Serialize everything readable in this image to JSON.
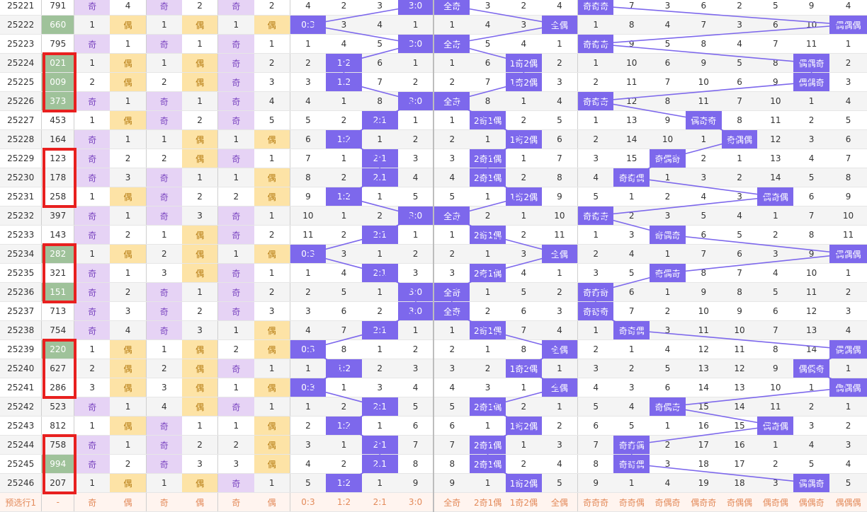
{
  "rows": [
    [
      "25221",
      "791",
      "奇",
      "4",
      "奇",
      "2",
      "奇",
      "2",
      "4",
      "2",
      "3",
      "3:0",
      "全奇",
      "3",
      "2",
      "4",
      "奇奇奇",
      "7",
      "3",
      "6",
      "2",
      "5",
      "9",
      "4"
    ],
    [
      "25222",
      "660",
      "1",
      "偶",
      "1",
      "偶",
      "1",
      "偶",
      "0:3",
      "3",
      "4",
      "1",
      "1",
      "4",
      "3",
      "全偶",
      "1",
      "8",
      "4",
      "7",
      "3",
      "6",
      "10",
      "偶偶偶"
    ],
    [
      "25223",
      "795",
      "奇",
      "1",
      "奇",
      "1",
      "奇",
      "1",
      "1",
      "4",
      "5",
      "3:0",
      "全奇",
      "5",
      "4",
      "1",
      "奇奇奇",
      "9",
      "5",
      "8",
      "4",
      "7",
      "11",
      "1"
    ],
    [
      "25224",
      "021",
      "1",
      "偶",
      "1",
      "偶",
      "奇",
      "2",
      "2",
      "1:2",
      "6",
      "1",
      "1",
      "6",
      "1奇2偶",
      "2",
      "1",
      "10",
      "6",
      "9",
      "5",
      "8",
      "偶偶奇",
      "2"
    ],
    [
      "25225",
      "009",
      "2",
      "偶",
      "2",
      "偶",
      "奇",
      "3",
      "3",
      "1:2",
      "7",
      "2",
      "2",
      "7",
      "1奇2偶",
      "3",
      "2",
      "11",
      "7",
      "10",
      "6",
      "9",
      "偶偶奇",
      "3"
    ],
    [
      "25226",
      "373",
      "奇",
      "1",
      "奇",
      "1",
      "奇",
      "4",
      "4",
      "1",
      "8",
      "3:0",
      "全奇",
      "8",
      "1",
      "4",
      "奇奇奇",
      "12",
      "8",
      "11",
      "7",
      "10",
      "1",
      "4"
    ],
    [
      "25227",
      "453",
      "1",
      "偶",
      "奇",
      "2",
      "奇",
      "5",
      "5",
      "2",
      "2:1",
      "1",
      "1",
      "2奇1偶",
      "2",
      "5",
      "1",
      "13",
      "9",
      "偶奇奇",
      "8",
      "11",
      "2",
      "5"
    ],
    [
      "25228",
      "164",
      "奇",
      "1",
      "1",
      "偶",
      "1",
      "偶",
      "6",
      "1:2",
      "1",
      "2",
      "2",
      "1",
      "1奇2偶",
      "6",
      "2",
      "14",
      "10",
      "1",
      "奇偶偶",
      "12",
      "3",
      "6"
    ],
    [
      "25229",
      "123",
      "奇",
      "2",
      "2",
      "偶",
      "奇",
      "1",
      "7",
      "1",
      "2:1",
      "3",
      "3",
      "2奇1偶",
      "1",
      "7",
      "3",
      "15",
      "奇偶奇",
      "2",
      "1",
      "13",
      "4",
      "7"
    ],
    [
      "25230",
      "178",
      "奇",
      "3",
      "奇",
      "1",
      "1",
      "偶",
      "8",
      "2",
      "2:1",
      "4",
      "4",
      "2奇1偶",
      "2",
      "8",
      "4",
      "奇奇偶",
      "1",
      "3",
      "2",
      "14",
      "5",
      "8"
    ],
    [
      "25231",
      "258",
      "1",
      "偶",
      "奇",
      "2",
      "2",
      "偶",
      "9",
      "1:2",
      "1",
      "5",
      "5",
      "1",
      "1奇2偶",
      "9",
      "5",
      "1",
      "2",
      "4",
      "3",
      "偶奇偶",
      "6",
      "9"
    ],
    [
      "25232",
      "397",
      "奇",
      "1",
      "奇",
      "3",
      "奇",
      "1",
      "10",
      "1",
      "2",
      "3:0",
      "全奇",
      "2",
      "1",
      "10",
      "奇奇奇",
      "2",
      "3",
      "5",
      "4",
      "1",
      "7",
      "10"
    ],
    [
      "25233",
      "143",
      "奇",
      "2",
      "1",
      "偶",
      "奇",
      "2",
      "11",
      "2",
      "2:1",
      "1",
      "1",
      "2奇1偶",
      "2",
      "11",
      "1",
      "3",
      "奇偶奇",
      "6",
      "5",
      "2",
      "8",
      "11"
    ],
    [
      "25234",
      "282",
      "1",
      "偶",
      "2",
      "偶",
      "1",
      "偶",
      "0:3",
      "3",
      "1",
      "2",
      "2",
      "1",
      "3",
      "全偶",
      "2",
      "4",
      "1",
      "7",
      "6",
      "3",
      "9",
      "偶偶偶"
    ],
    [
      "25235",
      "321",
      "奇",
      "1",
      "3",
      "偶",
      "奇",
      "1",
      "1",
      "4",
      "2:1",
      "3",
      "3",
      "2奇1偶",
      "4",
      "1",
      "3",
      "5",
      "奇偶奇",
      "8",
      "7",
      "4",
      "10",
      "1"
    ],
    [
      "25236",
      "151",
      "奇",
      "2",
      "奇",
      "1",
      "奇",
      "2",
      "2",
      "5",
      "1",
      "3:0",
      "全奇",
      "1",
      "5",
      "2",
      "奇奇奇",
      "6",
      "1",
      "9",
      "8",
      "5",
      "11",
      "2"
    ],
    [
      "25237",
      "713",
      "奇",
      "3",
      "奇",
      "2",
      "奇",
      "3",
      "3",
      "6",
      "2",
      "3:0",
      "全奇",
      "2",
      "6",
      "3",
      "奇奇奇",
      "7",
      "2",
      "10",
      "9",
      "6",
      "12",
      "3"
    ],
    [
      "25238",
      "754",
      "奇",
      "4",
      "奇",
      "3",
      "1",
      "偶",
      "4",
      "7",
      "2:1",
      "1",
      "1",
      "2奇1偶",
      "7",
      "4",
      "1",
      "奇奇偶",
      "3",
      "11",
      "10",
      "7",
      "13",
      "4"
    ],
    [
      "25239",
      "220",
      "1",
      "偶",
      "1",
      "偶",
      "2",
      "偶",
      "0:3",
      "8",
      "1",
      "2",
      "2",
      "1",
      "8",
      "全偶",
      "2",
      "1",
      "4",
      "12",
      "11",
      "8",
      "14",
      "偶偶偶"
    ],
    [
      "25240",
      "627",
      "2",
      "偶",
      "2",
      "偶",
      "奇",
      "1",
      "1",
      "1:2",
      "2",
      "3",
      "3",
      "2",
      "1奇2偶",
      "1",
      "3",
      "2",
      "5",
      "13",
      "12",
      "9",
      "偶偶奇",
      "1"
    ],
    [
      "25241",
      "286",
      "3",
      "偶",
      "3",
      "偶",
      "1",
      "偶",
      "0:3",
      "1",
      "3",
      "4",
      "4",
      "3",
      "1",
      "全偶",
      "4",
      "3",
      "6",
      "14",
      "13",
      "10",
      "1",
      "偶偶偶"
    ],
    [
      "25242",
      "523",
      "奇",
      "1",
      "4",
      "偶",
      "奇",
      "1",
      "1",
      "2",
      "2:1",
      "5",
      "5",
      "2奇1偶",
      "2",
      "1",
      "5",
      "4",
      "奇偶奇",
      "15",
      "14",
      "11",
      "2",
      "1"
    ],
    [
      "25243",
      "812",
      "1",
      "偶",
      "奇",
      "1",
      "1",
      "偶",
      "2",
      "1:2",
      "1",
      "6",
      "6",
      "1",
      "1奇2偶",
      "2",
      "6",
      "5",
      "1",
      "16",
      "15",
      "偶奇偶",
      "3",
      "2"
    ],
    [
      "25244",
      "758",
      "奇",
      "1",
      "奇",
      "2",
      "2",
      "偶",
      "3",
      "1",
      "2:1",
      "7",
      "7",
      "2奇1偶",
      "1",
      "3",
      "7",
      "奇奇偶",
      "2",
      "17",
      "16",
      "1",
      "4",
      "3"
    ],
    [
      "25245",
      "994",
      "奇",
      "2",
      "奇",
      "3",
      "3",
      "偶",
      "4",
      "2",
      "2:1",
      "8",
      "8",
      "2奇1偶",
      "2",
      "4",
      "8",
      "奇奇偶",
      "3",
      "18",
      "17",
      "2",
      "5",
      "4"
    ],
    [
      "25246",
      "207",
      "1",
      "偶",
      "1",
      "偶",
      "奇",
      "1",
      "5",
      "1:2",
      "1",
      "9",
      "9",
      "1",
      "1奇2偶",
      "5",
      "9",
      "1",
      "4",
      "19",
      "18",
      "3",
      "偶偶奇",
      "5"
    ]
  ],
  "highlight_numbers": [
    "660",
    "021",
    "009",
    "373",
    "282",
    "151",
    "220",
    "994"
  ],
  "footer": [
    "预选行1",
    "-",
    "奇",
    "偶",
    "奇",
    "偶",
    "奇",
    "偶",
    "0:3",
    "1:2",
    "2:1",
    "3:0",
    "全奇",
    "2奇1偶",
    "1奇2偶",
    "全偶",
    "奇奇奇",
    "奇奇偶",
    "奇偶奇",
    "偶奇奇",
    "奇偶偶",
    "偶奇偶",
    "偶偶奇",
    "偶偶偶"
  ],
  "colors": {
    "odd_bg": "#e6d3f5",
    "even_bg": "#fde3a6",
    "indicator": "#7d68ec",
    "highlight": "#9fc29a",
    "mark_box": "#e8201f"
  }
}
